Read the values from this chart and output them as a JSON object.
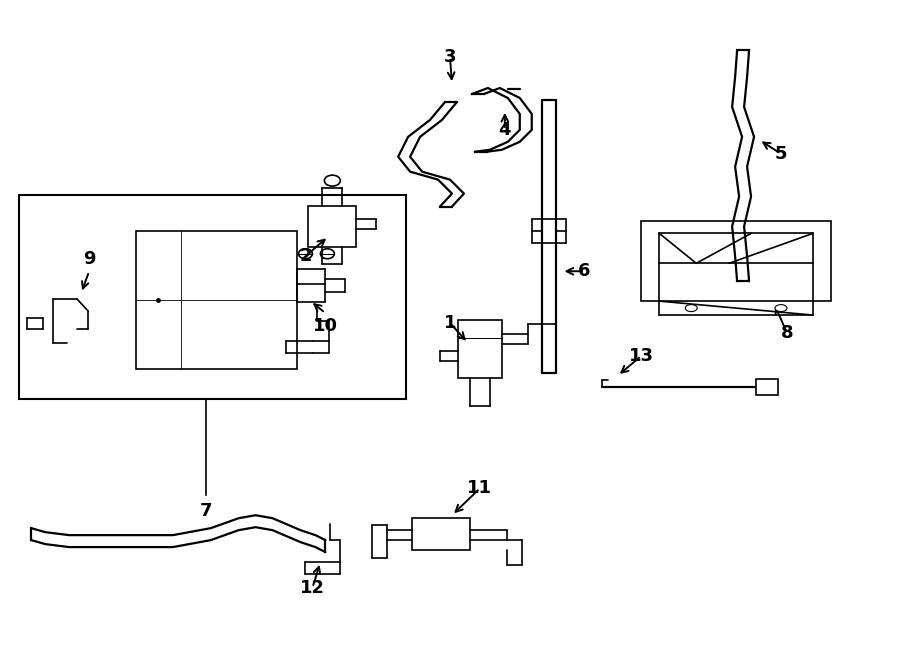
{
  "bg_color": "#ffffff",
  "line_color": "#000000",
  "lw": 1.6,
  "lw2": 1.2,
  "fig_w": 9.0,
  "fig_h": 6.61,
  "dpi": 100
}
